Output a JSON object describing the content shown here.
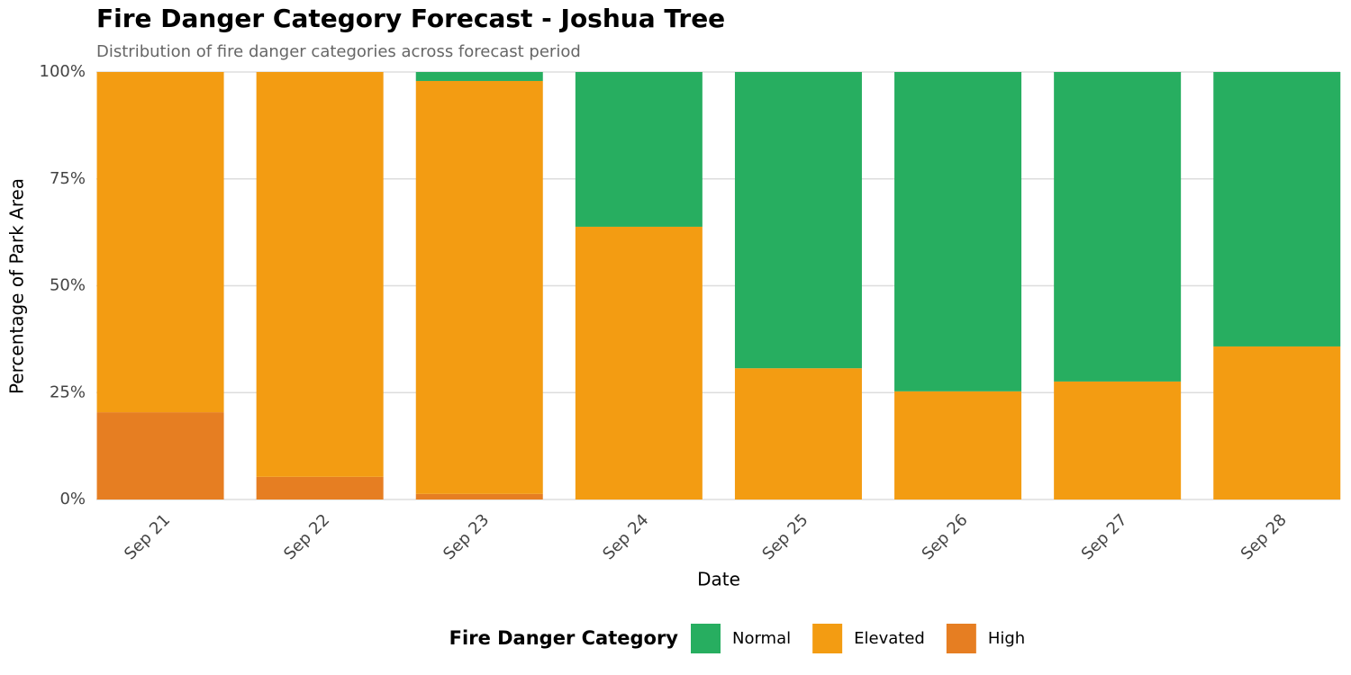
{
  "chart_data": {
    "type": "stacked_bar",
    "title": "Fire Danger Category Forecast - Joshua Tree",
    "subtitle": "Distribution of fire danger categories across forecast period",
    "x_label": "Date",
    "y_label": "Percentage of Park Area",
    "legend_title": "Fire Danger Category",
    "categories": [
      "Sep 21",
      "Sep 22",
      "Sep 23",
      "Sep 24",
      "Sep 25",
      "Sep 26",
      "Sep 27",
      "Sep 28"
    ],
    "series": [
      {
        "name": "Normal",
        "color": "#27ae60",
        "values": [
          0,
          0,
          2.1,
          36.2,
          69.3,
          74.7,
          72.4,
          64.2
        ]
      },
      {
        "name": "Elevated",
        "color": "#f39c12",
        "values": [
          79.6,
          94.7,
          96.6,
          63.8,
          30.7,
          25.3,
          27.6,
          35.8
        ]
      },
      {
        "name": "High",
        "color": "#e67e22",
        "values": [
          20.4,
          5.3,
          1.3,
          0,
          0,
          0,
          0,
          0
        ]
      }
    ],
    "ylim": [
      0,
      100
    ],
    "yticks": [
      {
        "value": 0,
        "label": "0%"
      },
      {
        "value": 25,
        "label": "25%"
      },
      {
        "value": 50,
        "label": "50%"
      },
      {
        "value": 75,
        "label": "75%"
      },
      {
        "value": 100,
        "label": "100%"
      }
    ],
    "grid": true,
    "legend_position": "bottom"
  }
}
